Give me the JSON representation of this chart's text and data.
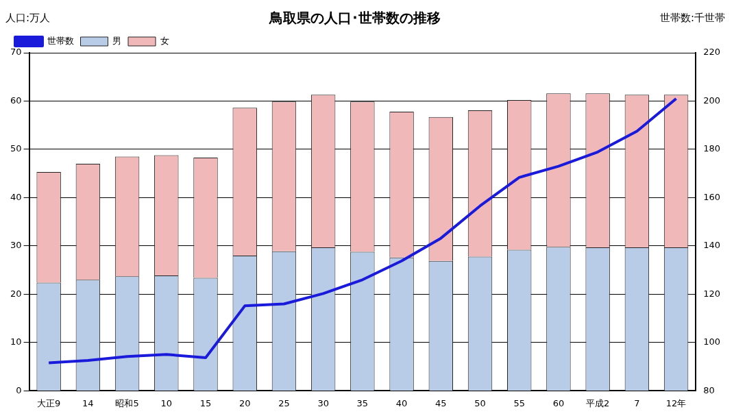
{
  "chart_data": {
    "type": "bar",
    "title": "鳥取県の人口･世帯数の推移",
    "ylabel": "人口:万人",
    "y2label": "世帯数:千世帯",
    "categories": [
      "大正9",
      "14",
      "昭和5",
      "10",
      "15",
      "20",
      "25",
      "30",
      "35",
      "40",
      "45",
      "50",
      "55",
      "60",
      "平成2",
      "7",
      "12年"
    ],
    "stacked": true,
    "series": [
      {
        "name": "男",
        "color": "#b8cce8",
        "values": [
          22.4,
          23.0,
          23.7,
          23.9,
          23.4,
          28.0,
          28.9,
          29.7,
          28.8,
          27.6,
          26.9,
          27.8,
          29.2,
          29.8,
          29.7,
          29.7,
          29.7
        ]
      },
      {
        "name": "女",
        "color": "#f0b8b8",
        "values": [
          22.9,
          24.0,
          24.8,
          24.9,
          24.9,
          30.6,
          31.0,
          31.6,
          31.1,
          30.2,
          29.8,
          30.3,
          31.0,
          31.8,
          31.9,
          31.6,
          31.6
        ]
      },
      {
        "name": "世帯数",
        "type": "line",
        "axis": "y2",
        "color": "#1a1adb",
        "values": [
          91.6,
          92.6,
          94.2,
          95.1,
          93.7,
          115.2,
          116.0,
          120.3,
          126.0,
          133.8,
          143.2,
          156.6,
          168.4,
          173.0,
          178.9,
          187.5,
          201.0
        ]
      }
    ],
    "ylim": [
      0,
      70
    ],
    "yticks": [
      0,
      10,
      20,
      30,
      40,
      50,
      60,
      70
    ],
    "y2lim": [
      80,
      220
    ],
    "y2ticks": [
      80,
      100,
      120,
      140,
      160,
      180,
      200,
      220
    ],
    "grid": "y",
    "legend": "top left",
    "marker": "none",
    "line_style": "solid"
  }
}
